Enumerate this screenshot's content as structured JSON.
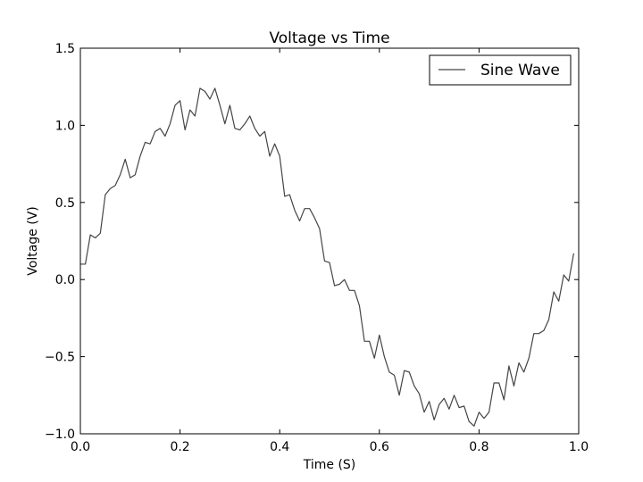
{
  "chart_data": {
    "type": "line",
    "title": "Voltage vs Time",
    "xlabel": "Time (S)",
    "ylabel": "Voltage (V)",
    "xlim": [
      0.0,
      1.0
    ],
    "ylim": [
      -1.0,
      1.5
    ],
    "xticks": [
      0.0,
      0.2,
      0.4,
      0.6,
      0.8,
      1.0
    ],
    "xtick_labels": [
      "0.0",
      "0.2",
      "0.4",
      "0.6",
      "0.8",
      "1.0"
    ],
    "yticks": [
      -1.0,
      -0.5,
      0.0,
      0.5,
      1.0,
      1.5
    ],
    "ytick_labels": [
      "−1.0",
      "−0.5",
      "0.0",
      "0.5",
      "1.0",
      "1.5"
    ],
    "grid": false,
    "legend_position": "top-right",
    "series": [
      {
        "name": "Sine Wave",
        "color": "#444444",
        "x": [
          0.0,
          0.01,
          0.02,
          0.03,
          0.04,
          0.05,
          0.06,
          0.07,
          0.08,
          0.09,
          0.1,
          0.11,
          0.12,
          0.13,
          0.14,
          0.15,
          0.16,
          0.17,
          0.18,
          0.19,
          0.2,
          0.21,
          0.22,
          0.23,
          0.24,
          0.25,
          0.26,
          0.27,
          0.28,
          0.29,
          0.3,
          0.31,
          0.32,
          0.33,
          0.34,
          0.35,
          0.36,
          0.37,
          0.38,
          0.39,
          0.4,
          0.41,
          0.42,
          0.43,
          0.44,
          0.45,
          0.46,
          0.47,
          0.48,
          0.49,
          0.5,
          0.51,
          0.52,
          0.53,
          0.54,
          0.55,
          0.56,
          0.57,
          0.58,
          0.59,
          0.6,
          0.61,
          0.62,
          0.63,
          0.64,
          0.65,
          0.66,
          0.67,
          0.68,
          0.69,
          0.7,
          0.71,
          0.72,
          0.73,
          0.74,
          0.75,
          0.76,
          0.77,
          0.78,
          0.79,
          0.8,
          0.81,
          0.82,
          0.83,
          0.84,
          0.85,
          0.86,
          0.87,
          0.88,
          0.89,
          0.9,
          0.91,
          0.92,
          0.93,
          0.94,
          0.95,
          0.96,
          0.97,
          0.98,
          0.99
        ],
        "values": [
          0.1,
          0.1,
          0.29,
          0.27,
          0.3,
          0.55,
          0.59,
          0.61,
          0.68,
          0.78,
          0.66,
          0.68,
          0.8,
          0.89,
          0.88,
          0.96,
          0.98,
          0.93,
          1.01,
          1.13,
          1.16,
          0.97,
          1.1,
          1.06,
          1.24,
          1.22,
          1.17,
          1.24,
          1.13,
          1.01,
          1.13,
          0.98,
          0.97,
          1.01,
          1.06,
          0.98,
          0.93,
          0.96,
          0.8,
          0.88,
          0.8,
          0.54,
          0.55,
          0.45,
          0.38,
          0.46,
          0.46,
          0.4,
          0.33,
          0.12,
          0.11,
          -0.04,
          -0.03,
          0.0,
          -0.07,
          -0.07,
          -0.17,
          -0.4,
          -0.4,
          -0.51,
          -0.36,
          -0.5,
          -0.6,
          -0.62,
          -0.75,
          -0.59,
          -0.6,
          -0.69,
          -0.74,
          -0.86,
          -0.79,
          -0.91,
          -0.81,
          -0.77,
          -0.84,
          -0.75,
          -0.83,
          -0.82,
          -0.92,
          -0.95,
          -0.86,
          -0.9,
          -0.86,
          -0.67,
          -0.67,
          -0.78,
          -0.56,
          -0.69,
          -0.54,
          -0.6,
          -0.51,
          -0.35,
          -0.35,
          -0.33,
          -0.26,
          -0.08,
          -0.14,
          0.03,
          -0.01,
          0.17
        ]
      }
    ]
  }
}
